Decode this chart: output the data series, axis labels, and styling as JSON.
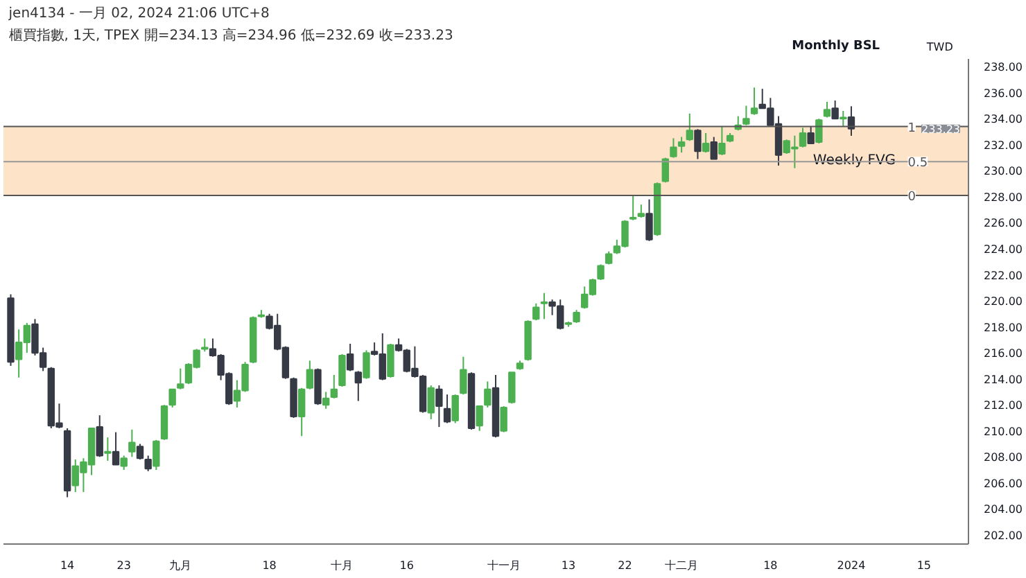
{
  "chart_data": {
    "type": "candlestick",
    "title": "jen4134 - 一月 02, 2024 21:06 UTC+8",
    "subtitle": "櫃買指數, 1天, TPEX  開=234.13 高=234.96 低=232.69 收=233.23",
    "ylabel": "TWD",
    "categories": [
      null,
      null,
      null,
      null,
      null,
      null,
      null,
      "14",
      null,
      null,
      null,
      null,
      null,
      null,
      "23",
      null,
      null,
      null,
      null,
      null,
      null,
      "九月",
      null,
      null,
      null,
      null,
      null,
      null,
      null,
      null,
      null,
      null,
      "18",
      null,
      null,
      null,
      null,
      null,
      null,
      null,
      null,
      "十月",
      null,
      null,
      null,
      null,
      null,
      null,
      null,
      "16",
      null,
      null,
      null,
      null,
      null,
      null,
      null,
      null,
      null,
      null,
      null,
      "十一月",
      null,
      null,
      null,
      null,
      null,
      null,
      null,
      "13",
      null,
      null,
      null,
      null,
      null,
      null,
      "22",
      null,
      null,
      null,
      null,
      null,
      null,
      "十二月",
      null,
      null,
      null,
      null,
      null,
      null,
      null,
      null,
      null,
      null,
      "18",
      null,
      null,
      null,
      null,
      null,
      null,
      null,
      null,
      null,
      "2024",
      null,
      null,
      null,
      null,
      null,
      null,
      null,
      null,
      "15",
      null,
      null,
      null,
      null,
      null
    ],
    "ohlc": [
      [
        220.2,
        220.5,
        215.0,
        215.3
      ],
      [
        215.5,
        217.8,
        214.1,
        216.8
      ],
      [
        216.8,
        218.3,
        216.0,
        218.1
      ],
      [
        218.2,
        218.6,
        215.8,
        216.0
      ],
      [
        216.0,
        216.4,
        214.6,
        214.9
      ],
      [
        214.8,
        214.9,
        210.2,
        210.4
      ],
      [
        210.6,
        212.1,
        210.2,
        210.3
      ],
      [
        210.0,
        210.2,
        204.9,
        205.4
      ],
      [
        205.8,
        207.8,
        205.3,
        207.3
      ],
      [
        206.8,
        207.9,
        205.3,
        207.6
      ],
      [
        207.4,
        210.2,
        206.6,
        210.2
      ],
      [
        210.3,
        211.2,
        208.0,
        208.1
      ],
      [
        208.3,
        209.5,
        207.7,
        208.4
      ],
      [
        208.4,
        209.9,
        207.4,
        207.4
      ],
      [
        207.3,
        208.1,
        207.0,
        207.9
      ],
      [
        208.4,
        210.1,
        208.0,
        209.1
      ],
      [
        208.8,
        209.0,
        207.8,
        207.9
      ],
      [
        207.8,
        208.1,
        206.9,
        207.1
      ],
      [
        207.3,
        209.3,
        207.0,
        209.2
      ],
      [
        209.4,
        212.0,
        209.3,
        211.9
      ],
      [
        212.0,
        213.2,
        211.8,
        213.2
      ],
      [
        213.3,
        214.8,
        213.2,
        213.6
      ],
      [
        213.7,
        215.2,
        213.6,
        215.1
      ],
      [
        214.9,
        216.3,
        214.8,
        216.2
      ],
      [
        216.3,
        217.1,
        216.1,
        216.4
      ],
      [
        216.3,
        217.1,
        215.7,
        215.8
      ],
      [
        215.8,
        215.9,
        213.9,
        214.3
      ],
      [
        214.4,
        214.5,
        212.0,
        212.1
      ],
      [
        212.3,
        213.9,
        211.8,
        213.1
      ],
      [
        213.1,
        215.3,
        213.0,
        215.1
      ],
      [
        215.3,
        218.8,
        215.2,
        218.7
      ],
      [
        218.8,
        219.3,
        218.7,
        218.9
      ],
      [
        218.8,
        219.0,
        217.8,
        217.9
      ],
      [
        218.1,
        219.0,
        216.2,
        216.3
      ],
      [
        216.4,
        216.5,
        214.0,
        214.1
      ],
      [
        214.0,
        214.1,
        211.0,
        211.1
      ],
      [
        211.1,
        213.3,
        209.6,
        213.2
      ],
      [
        213.3,
        215.4,
        213.2,
        214.7
      ],
      [
        214.7,
        214.8,
        212.0,
        212.1
      ],
      [
        212.0,
        213.0,
        211.7,
        212.5
      ],
      [
        212.6,
        214.3,
        212.5,
        213.2
      ],
      [
        213.5,
        215.9,
        213.4,
        215.8
      ],
      [
        215.9,
        216.7,
        214.6,
        214.7
      ],
      [
        214.5,
        214.6,
        212.3,
        213.7
      ],
      [
        214.1,
        216.2,
        214.0,
        216.0
      ],
      [
        216.1,
        216.8,
        215.8,
        215.9
      ],
      [
        215.9,
        217.5,
        213.9,
        214.0
      ],
      [
        214.2,
        216.7,
        214.1,
        216.6
      ],
      [
        216.6,
        217.1,
        216.1,
        216.2
      ],
      [
        216.2,
        216.3,
        214.5,
        214.6
      ],
      [
        214.8,
        216.5,
        214.1,
        214.2
      ],
      [
        214.2,
        214.3,
        211.4,
        211.5
      ],
      [
        211.4,
        213.5,
        210.9,
        213.3
      ],
      [
        213.2,
        213.5,
        210.3,
        211.9
      ],
      [
        211.7,
        212.8,
        210.6,
        210.7
      ],
      [
        210.8,
        212.8,
        210.6,
        212.7
      ],
      [
        212.9,
        215.7,
        212.8,
        214.7
      ],
      [
        214.4,
        214.5,
        210.1,
        210.2
      ],
      [
        210.4,
        211.9,
        210.0,
        211.9
      ],
      [
        212.0,
        213.8,
        211.8,
        213.2
      ],
      [
        213.3,
        214.3,
        209.5,
        209.6
      ],
      [
        210.0,
        211.9,
        209.9,
        211.8
      ],
      [
        212.2,
        214.5,
        212.1,
        214.5
      ],
      [
        214.8,
        215.4,
        214.7,
        215.2
      ],
      [
        215.5,
        218.5,
        215.4,
        218.4
      ],
      [
        218.6,
        219.8,
        218.5,
        219.5
      ],
      [
        219.8,
        220.6,
        218.6,
        219.9
      ],
      [
        219.9,
        220.1,
        218.9,
        219.6
      ],
      [
        219.6,
        220.1,
        217.8,
        217.9
      ],
      [
        218.2,
        218.4,
        218.0,
        218.3
      ],
      [
        218.4,
        219.3,
        218.3,
        219.1
      ],
      [
        219.5,
        221.1,
        219.4,
        220.5
      ],
      [
        220.5,
        221.7,
        220.4,
        221.6
      ],
      [
        221.7,
        222.8,
        221.6,
        222.7
      ],
      [
        222.9,
        223.8,
        222.8,
        223.6
      ],
      [
        223.7,
        224.7,
        223.6,
        224.2
      ],
      [
        224.2,
        226.2,
        224.1,
        226.1
      ],
      [
        226.3,
        228.1,
        226.2,
        226.4
      ],
      [
        226.5,
        227.4,
        226.4,
        226.7
      ],
      [
        226.7,
        227.8,
        224.6,
        224.7
      ],
      [
        225.1,
        229.1,
        225.0,
        229.0
      ],
      [
        229.2,
        231.0,
        229.1,
        230.9
      ],
      [
        231.1,
        232.5,
        231.0,
        231.8
      ],
      [
        231.9,
        232.6,
        231.4,
        232.2
      ],
      [
        232.4,
        234.4,
        232.3,
        233.1
      ],
      [
        233.1,
        233.2,
        230.9,
        231.5
      ],
      [
        231.5,
        232.9,
        231.4,
        232.1
      ],
      [
        232.2,
        232.6,
        230.9,
        230.9
      ],
      [
        231.3,
        233.4,
        231.2,
        232.1
      ],
      [
        232.3,
        232.9,
        232.2,
        232.7
      ],
      [
        233.2,
        234.2,
        233.1,
        233.5
      ],
      [
        233.6,
        235.0,
        233.5,
        234.0
      ],
      [
        234.4,
        236.4,
        234.3,
        234.8
      ],
      [
        235.1,
        236.3,
        234.8,
        234.8
      ],
      [
        234.8,
        235.6,
        233.5,
        233.5
      ],
      [
        233.6,
        234.2,
        230.4,
        231.2
      ],
      [
        231.4,
        232.4,
        231.3,
        232.3
      ],
      [
        231.7,
        232.7,
        230.2,
        231.8
      ],
      [
        231.9,
        233.3,
        231.8,
        232.9
      ],
      [
        232.9,
        233.4,
        232.1,
        232.1
      ],
      [
        232.2,
        234.0,
        232.1,
        233.9
      ],
      [
        234.2,
        235.3,
        234.1,
        234.7
      ],
      [
        234.8,
        235.4,
        234.0,
        234.0
      ],
      [
        234.0,
        234.6,
        233.4,
        234.1
      ],
      [
        234.13,
        234.96,
        232.69,
        233.23
      ],
      null,
      null,
      null,
      null,
      null,
      null,
      null,
      null,
      null,
      null,
      null,
      null,
      null,
      null
    ],
    "colors": [
      "#363a45",
      "#4caf50",
      "#4caf50",
      "#363a45",
      "#363a45",
      "#363a45",
      "#363a45",
      "#363a45",
      "#4caf50",
      "#4caf50",
      "#4caf50",
      "#363a45",
      "#4caf50",
      "#363a45",
      "#4caf50",
      "#4caf50",
      "#363a45",
      "#363a45",
      "#4caf50",
      "#4caf50",
      "#4caf50",
      "#4caf50",
      "#4caf50",
      "#4caf50",
      "#4caf50",
      "#363a45",
      "#363a45",
      "#363a45",
      "#4caf50",
      "#4caf50",
      "#4caf50",
      "#4caf50",
      "#363a45",
      "#363a45",
      "#363a45",
      "#363a45",
      "#4caf50",
      "#4caf50",
      "#363a45",
      "#4caf50",
      "#4caf50",
      "#4caf50",
      "#363a45",
      "#363a45",
      "#4caf50",
      "#363a45",
      "#363a45",
      "#4caf50",
      "#363a45",
      "#363a45",
      "#363a45",
      "#363a45",
      "#4caf50",
      "#363a45",
      "#363a45",
      "#4caf50",
      "#4caf50",
      "#363a45",
      "#4caf50",
      "#4caf50",
      "#363a45",
      "#4caf50",
      "#4caf50",
      "#4caf50",
      "#4caf50",
      "#4caf50",
      "#4caf50",
      "#363a45",
      "#363a45",
      "#4caf50",
      "#4caf50",
      "#4caf50",
      "#4caf50",
      "#4caf50",
      "#4caf50",
      "#4caf50",
      "#4caf50",
      "#4caf50",
      "#4caf50",
      "#363a45",
      "#4caf50",
      "#4caf50",
      "#4caf50",
      "#4caf50",
      "#4caf50",
      "#363a45",
      "#4caf50",
      "#363a45",
      "#4caf50",
      "#4caf50",
      "#4caf50",
      "#4caf50",
      "#4caf50",
      "#363a45",
      "#363a45",
      "#363a45",
      "#4caf50",
      "#4caf50",
      "#4caf50",
      "#363a45",
      "#4caf50",
      "#4caf50",
      "#363a45",
      "#4caf50",
      "#363a45",
      null,
      null,
      null,
      null,
      null,
      null,
      null,
      null,
      null,
      null,
      null,
      null,
      null,
      null
    ],
    "ylim": [
      201.3,
      238.6
    ],
    "yticks": [
      {
        "value": 202,
        "label": "202.00"
      },
      {
        "value": 204,
        "label": "204.00"
      },
      {
        "value": 206,
        "label": "206.00"
      },
      {
        "value": 208,
        "label": "208.00"
      },
      {
        "value": 210,
        "label": "210.00"
      },
      {
        "value": 212,
        "label": "212.00"
      },
      {
        "value": 214,
        "label": "214.00"
      },
      {
        "value": 216,
        "label": "216.00"
      },
      {
        "value": 218,
        "label": "218.00"
      },
      {
        "value": 220,
        "label": "220.00"
      },
      {
        "value": 222,
        "label": "222.00"
      },
      {
        "value": 224,
        "label": "224.00"
      },
      {
        "value": 226,
        "label": "226.00"
      },
      {
        "value": 228,
        "label": "228.00"
      },
      {
        "value": 230,
        "label": "230.00"
      },
      {
        "value": 232,
        "label": "232.00"
      },
      {
        "value": 234,
        "label": "234.00"
      },
      {
        "value": 236,
        "label": "236.00"
      },
      {
        "value": 238,
        "label": "238.00"
      }
    ],
    "bands": [
      {
        "axis": "y",
        "from": 228.1,
        "to": 233.4,
        "label": "Weekly FVG",
        "color": "#fde3c8"
      }
    ],
    "ref_lines": [
      {
        "axis": "y",
        "value": 233.4,
        "color": "#555555"
      },
      {
        "axis": "y",
        "value": 230.7,
        "color": "#999999"
      },
      {
        "axis": "y",
        "value": 228.1,
        "color": "#555555"
      }
    ],
    "annotations": [
      "Monthly BSL",
      {
        "text": "233.23",
        "y": 233.23
      },
      {
        "text": "1",
        "y": 233.4
      },
      {
        "text": "0.5",
        "y": 230.7
      },
      {
        "text": "0",
        "y": 228.1
      }
    ],
    "grid": false
  }
}
